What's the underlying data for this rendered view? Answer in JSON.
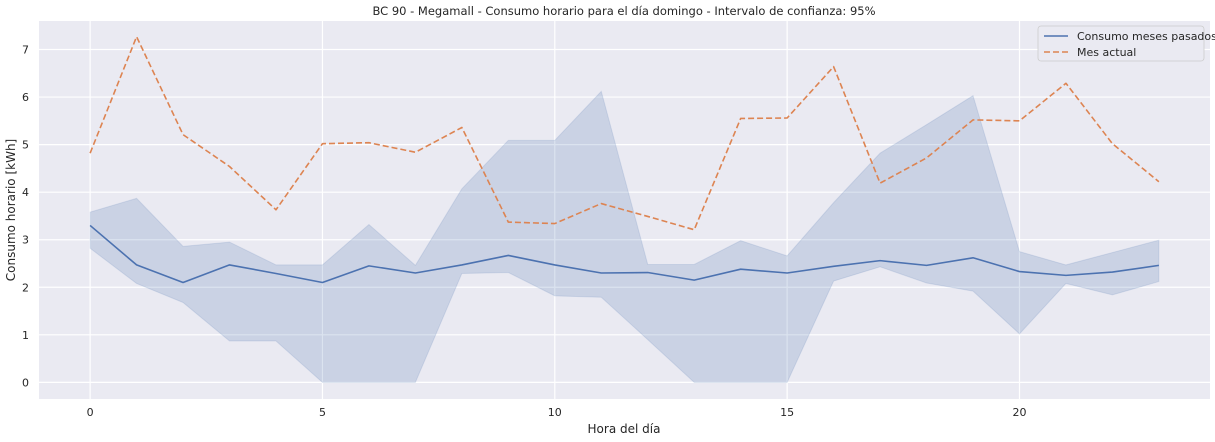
{
  "chart_data": {
    "type": "line",
    "title": "BC 90 - Megamall - Consumo horario para el día domingo - Intervalo de confianza: 95%",
    "xlabel": "Hora del día",
    "ylabel": "Consumo horario [kWh]",
    "xlim": [
      -1.1,
      24.1
    ],
    "ylim": [
      -0.35,
      7.6
    ],
    "xticks": [
      0,
      5,
      10,
      15,
      20
    ],
    "yticks": [
      0,
      1,
      2,
      3,
      4,
      5,
      6,
      7
    ],
    "grid": true,
    "legend_position": "top-right",
    "x": [
      0,
      1,
      2,
      3,
      4,
      5,
      6,
      7,
      8,
      9,
      10,
      11,
      12,
      13,
      14,
      15,
      16,
      17,
      18,
      19,
      20,
      21,
      22,
      23
    ],
    "series": [
      {
        "name": "Consumo meses pasados",
        "style": "solid",
        "color": "#4c72b0",
        "values": [
          3.3,
          2.47,
          2.1,
          2.47,
          2.29,
          2.1,
          2.45,
          2.3,
          2.47,
          2.67,
          2.47,
          2.3,
          2.31,
          2.15,
          2.38,
          2.3,
          2.44,
          2.56,
          2.46,
          2.62,
          2.33,
          2.25,
          2.32,
          2.46
        ],
        "ci_lower": [
          2.82,
          2.08,
          1.68,
          0.87,
          0.87,
          0.0,
          0.0,
          0.0,
          2.29,
          2.31,
          1.82,
          1.79,
          0.9,
          0.0,
          0.0,
          0.0,
          2.13,
          2.43,
          2.09,
          1.92,
          1.02,
          2.08,
          1.84,
          2.12
        ],
        "ci_upper": [
          3.58,
          3.87,
          2.86,
          2.95,
          2.47,
          2.47,
          3.32,
          2.46,
          4.07,
          5.09,
          5.09,
          6.12,
          2.48,
          2.48,
          2.98,
          2.66,
          3.78,
          4.82,
          5.42,
          6.03,
          2.75,
          2.47,
          2.73,
          2.99
        ]
      },
      {
        "name": "Mes actual",
        "style": "dashed",
        "color": "#dd8452",
        "values": [
          4.82,
          7.27,
          5.21,
          4.54,
          3.63,
          5.02,
          5.04,
          4.84,
          5.36,
          3.37,
          3.34,
          3.76,
          3.49,
          3.21,
          5.55,
          5.56,
          6.64,
          4.19,
          4.72,
          5.52,
          5.5,
          6.29,
          5.02,
          4.22
        ]
      }
    ]
  }
}
